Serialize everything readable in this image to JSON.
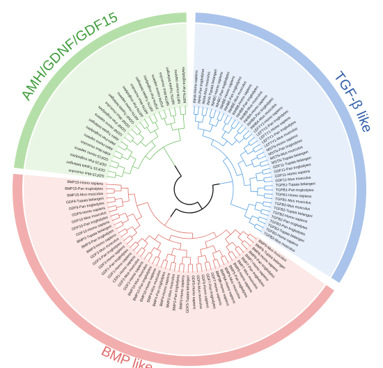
{
  "figure": {
    "clades": [
      {
        "name": "AMH/GDNF/GDF15",
        "ring_color": "#b5dfa8",
        "bg_color": "#e3f3dc",
        "text_color": "#3e9c3a",
        "branch_color": "#6fbe63",
        "leaves": [
          "GDF15-Mus musculus",
          "GDF15-Tupaia belangeri",
          "GDF15-Pan troglodytes",
          "GDF15-Homo sapiens",
          "AMH-Mus musculus",
          "AMH-Homo sapiens",
          "AMH-Pan troglodytes",
          "AMH-Tupaia belangeri",
          "GDNF-Homo sapiens",
          "GDNF-Pan troglodytes",
          "GDNF-Mus musculus",
          "GDNF-Tupaia belangeri",
          "ARTN-Homo sapiens",
          "ARTN-Pan troglodytes",
          "ARTN-Mus musculus",
          "ARTN-Tupaia belangeri",
          "PSPN-Pan troglodytes",
          "PSPN-Homo sapiens",
          "NRTN-Mus musculus",
          "NRTN-Tupaia belangeri",
          "NRTN-Homo sapiens",
          "NRTN-Pan troglodytes"
        ]
      },
      {
        "name": "TGF-β like",
        "ring_color": "#a9c3ea",
        "bg_color": "#dfe9f8",
        "text_color": "#2f5da8",
        "branch_color": "#4f9be0",
        "leaves": [
          "INHA-Homo sapiens",
          "INHA-Pan troglodytes",
          "INHA-Mus musculus",
          "INHA-Tupaia belangeri",
          "INHBC-Homo sapiens",
          "INHBC-Pan troglodytes",
          "INHBE-Homo sapiens",
          "INHBE-Pan troglodytes",
          "INHBE-Mus musculus",
          "INHBB-Homo sapiens",
          "INHBB-Pan troglodytes",
          "INHBB-Mus musculus",
          "INHBA-Homo sapiens",
          "INHBA-Pan troglodytes",
          "INHBA-Mus musculus",
          "LEFTY2-Homo sapiens",
          "LEFTY2-Pan troglodytes",
          "LEFTY1-Homo sapiens",
          "LEFTY1-Pan troglodytes",
          "LEFTY1-Mus musculus",
          "MSTN-Homo sapiens",
          "MSTN-Pan troglodytes",
          "MSTN-Mus musculus",
          "MSTN-Tupaia belangeri",
          "GDF11-Tupaia belangeri",
          "GDF11-Pan troglodytes",
          "GDF11-Homo sapiens",
          "GDF11-Mus musculus",
          "TGFB1-Tupaia belangeri",
          "TGFB1-Pan troglodytes",
          "TGFB1-Homo sapiens",
          "TGFB1-Mus musculus",
          "TGFB2-Mus musculus",
          "TGFB2-Tupaia belangeri",
          "TGFB2-Homo sapiens",
          "TGFB2-Pan troglodytes",
          "TGFB3-Pan troglodytes",
          "TGFB3-Tupaia belangeri",
          "TGFB3-Homo sapiens",
          "TGFB3-Mus musculus"
        ]
      },
      {
        "name": "BMP like",
        "ring_color": "#f2aeae",
        "bg_color": "#fbe0dd",
        "text_color": "#e06b6b",
        "branch_color": "#dd6a62",
        "leaves": [
          "BMP6-Mus musculus",
          "BMP6-Tupaia belangeri",
          "BMP6-Homo sapiens",
          "BMP6-Pan troglodytes",
          "BMP7-Homo sapiens",
          "BMP7-Pan troglodytes",
          "BMP7-Mus musculus",
          "BMP5-Homo sapiens",
          "BMP5-Pan troglodytes",
          "BMP5-Mus musculus",
          "BMP8A-Homo sapiens",
          "BMP8B-Homo sapiens",
          "GDF7-Homo sapiens",
          "GDF7-Pan troglodytes",
          "GDF6-Homo sapiens",
          "GDF6-Mus musculus",
          "GDF5-Homo sapiens",
          "GDF5-Tupaia belangeri",
          "BMP2-Homo sapiens",
          "BMP2-Pan troglodytes",
          "BMP2-Mus musculus",
          "BMP4-Homo sapiens",
          "BMP4-Pan troglodytes",
          "BMP4-Mus musculus",
          "BMP10-Homo sapiens",
          "BMP10-Pan troglodytes",
          "BMP10-Mus musculus",
          "GDF2-Homo sapiens",
          "GDF2-Mus musculus",
          "CER1-Homo sapiens",
          "GDF1-Homo sapiens",
          "GDF1-Pan troglodytes",
          "GDF3-Homo sapiens",
          "GDF3-Pan troglodytes",
          "GDF3-Mus musculus",
          "BMP3-Homo sapiens",
          "BMP3-Pan troglodytes",
          "BMP3-Tupaia belangeri",
          "GDF10-Homo sapiens",
          "GDF10-Pan troglodytes",
          "GDF10-Mus musculus",
          "GDF9-Homo sapiens",
          "GDF9-Pan troglodytes",
          "GDF9-Tupaia belangeri",
          "BMP15-Mus musculus",
          "BMP15-Pan troglodytes",
          "BMP15-Homo sapiens"
        ]
      }
    ]
  }
}
